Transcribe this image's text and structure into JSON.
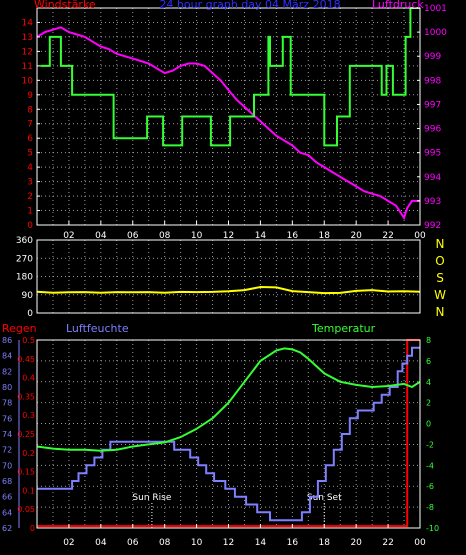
{
  "colors": {
    "background": "#000000",
    "frame": "#ffffff",
    "grid": "#9a9a9a",
    "wind": "#33ff33",
    "pressure": "#ff00ff",
    "direction": "#ffff00",
    "rain": "#ff0000",
    "humidity": "#7f7fff",
    "temperature": "#33ff33",
    "title": "#2f2fff",
    "compass": "#ffff00",
    "sun_label": "#ffffff"
  },
  "chart_data": [
    {
      "type": "line",
      "title": "24 hour graph day  04 März 2018",
      "left_label": "Windstärke",
      "right_label": "Luftdruck",
      "x_tick_labels": [
        "02",
        "04",
        "06",
        "08",
        "10",
        "12",
        "14",
        "16",
        "18",
        "20",
        "22",
        "00"
      ],
      "left_axis": {
        "min": 0,
        "max": 15,
        "ticks": [
          0,
          1,
          2,
          3,
          4,
          5,
          6,
          7,
          8,
          9,
          10,
          11,
          12,
          13,
          14
        ]
      },
      "right_axis": {
        "min": 992,
        "max": 1001,
        "ticks": [
          992,
          993,
          994,
          995,
          996,
          997,
          998,
          999,
          1000,
          1001
        ]
      },
      "grid": true,
      "series": [
        {
          "name": "Windstärke",
          "axis": "left",
          "step": true,
          "x": [
            0.2,
            0.8,
            1.5,
            2.2,
            3.3,
            4.8,
            5.8,
            6.9,
            7.6,
            7.9,
            8.6,
            9.1,
            9.3,
            10.1,
            10.9,
            11.3,
            12.1,
            13.6,
            14.3,
            14.5,
            14.6,
            15.1,
            15.4,
            15.9,
            16.9,
            17.6,
            18.0,
            18.8,
            19.6,
            21.1,
            21.6,
            21.9,
            22.3,
            23.1,
            23.4
          ],
          "y": [
            11,
            13,
            11,
            9,
            9,
            6,
            6,
            7.5,
            7.5,
            5.5,
            5.5,
            7.5,
            7.5,
            7.5,
            5.5,
            5.5,
            7.5,
            9,
            9,
            13,
            11,
            11,
            13,
            9,
            9,
            9,
            5.5,
            7.5,
            11,
            11,
            9,
            11,
            9,
            13,
            15
          ]
        },
        {
          "name": "Luftdruck",
          "axis": "right",
          "x": [
            0,
            0.5,
            1,
            1.5,
            2,
            2.5,
            3,
            3.5,
            4,
            4.5,
            5,
            5.5,
            6,
            6.5,
            7,
            7.5,
            8,
            8.5,
            9,
            9.5,
            10,
            10.5,
            11,
            11.5,
            12,
            12.5,
            13,
            13.5,
            14,
            14.5,
            15,
            15.5,
            16,
            16.5,
            17,
            17.5,
            18,
            18.5,
            19,
            19.5,
            20,
            20.5,
            21,
            21.5,
            22,
            22.5,
            23,
            23.2,
            23.5,
            24
          ],
          "y": [
            999.8,
            1000.0,
            1000.1,
            1000.2,
            1000.0,
            999.9,
            999.8,
            999.6,
            999.4,
            999.3,
            999.1,
            999.0,
            998.9,
            998.8,
            998.7,
            998.5,
            998.3,
            998.4,
            998.6,
            998.7,
            998.7,
            998.6,
            998.3,
            998.0,
            997.6,
            997.2,
            996.9,
            996.6,
            996.3,
            996.0,
            995.7,
            995.5,
            995.3,
            995.0,
            994.9,
            994.6,
            994.4,
            994.2,
            994.0,
            993.8,
            993.6,
            993.4,
            993.3,
            993.2,
            993.0,
            992.8,
            992.3,
            992.7,
            993.0,
            993.0
          ]
        }
      ]
    },
    {
      "type": "line",
      "title": "",
      "left_axis": {
        "min": 0,
        "max": 360,
        "ticks": [
          0,
          90,
          180,
          270,
          360
        ]
      },
      "compass_labels": [
        "N",
        "W",
        "S",
        "O",
        "N"
      ],
      "grid": true,
      "series": [
        {
          "name": "",
          "x": [
            0,
            1,
            2,
            3,
            4,
            5,
            6,
            7,
            8,
            9,
            10,
            11,
            12,
            13,
            14,
            15,
            16,
            17,
            18,
            19,
            20,
            21,
            22,
            23,
            24
          ],
          "y": [
            105,
            100,
            102,
            103,
            100,
            103,
            102,
            103,
            100,
            104,
            103,
            104,
            107,
            113,
            128,
            126,
            108,
            103,
            98,
            99,
            109,
            113,
            106,
            107,
            105
          ]
        }
      ]
    },
    {
      "type": "line",
      "title": "",
      "rain_label": "Regen",
      "humidity_label": "Luftfeuchte",
      "temperature_label": "Temperatur",
      "x_tick_labels": [
        "02",
        "04",
        "06",
        "08",
        "10",
        "12",
        "14",
        "16",
        "18",
        "20",
        "22",
        "00"
      ],
      "rain_axis": {
        "min": 0,
        "max": 0.5,
        "ticks": [
          "0",
          "0.05",
          "0.1",
          "0.15",
          "0.2",
          "0.25",
          "0.3",
          "0.35",
          "0.4",
          "0.45",
          "0.5"
        ]
      },
      "humidity_axis": {
        "min": 62,
        "max": 86,
        "ticks": [
          62,
          64,
          66,
          68,
          70,
          72,
          74,
          76,
          78,
          80,
          82,
          84,
          86
        ]
      },
      "temperature_axis": {
        "min": -10,
        "max": 8,
        "ticks": [
          -10,
          -8,
          -6,
          -4,
          -2,
          0,
          2,
          4,
          6,
          8
        ]
      },
      "annotations": [
        {
          "label": "Sun Rise",
          "x": 7.2
        },
        {
          "label": "Sun Set",
          "x": 18.0
        }
      ],
      "grid": true,
      "series": [
        {
          "name": "Regen",
          "axis": "rain",
          "x": [
            0,
            23.2,
            23.2,
            24
          ],
          "y": [
            0.005,
            0.005,
            0.5,
            0.5
          ]
        },
        {
          "name": "Luftfeuchte",
          "axis": "humidity",
          "step": true,
          "x": [
            0,
            2.2,
            2.6,
            3.1,
            3.6,
            4.1,
            4.6,
            8.1,
            8.6,
            9.6,
            10.1,
            10.6,
            11.1,
            11.8,
            12.4,
            13.1,
            13.8,
            14.6,
            16.6,
            17.1,
            17.6,
            18.1,
            18.6,
            19.1,
            19.6,
            20.1,
            20.6,
            21.1,
            21.6,
            22.1,
            22.6,
            22.9,
            23.2,
            23.5
          ],
          "y": [
            67,
            68,
            69,
            70,
            71,
            72,
            73,
            73,
            72,
            71,
            70,
            69,
            68,
            67,
            66,
            65,
            64,
            63,
            64,
            66,
            68,
            70,
            72,
            74,
            76,
            77,
            77,
            78,
            79,
            80,
            82,
            83,
            84,
            85
          ]
        },
        {
          "name": "Temperatur",
          "axis": "temperature",
          "x": [
            0,
            1,
            2,
            3,
            4,
            5,
            6,
            7,
            8,
            9,
            10,
            11,
            12,
            13,
            14,
            15,
            15.5,
            16,
            16.5,
            17,
            18,
            19,
            20,
            21,
            22,
            23,
            23.5,
            24
          ],
          "y": [
            -2.2,
            -2.4,
            -2.5,
            -2.5,
            -2.6,
            -2.5,
            -2.2,
            -2.0,
            -1.8,
            -1.3,
            -0.5,
            0.5,
            2.0,
            4.0,
            6.0,
            7.0,
            7.2,
            7.1,
            6.8,
            6.2,
            4.8,
            4.0,
            3.7,
            3.5,
            3.6,
            3.8,
            3.5,
            4.0
          ]
        }
      ]
    }
  ]
}
